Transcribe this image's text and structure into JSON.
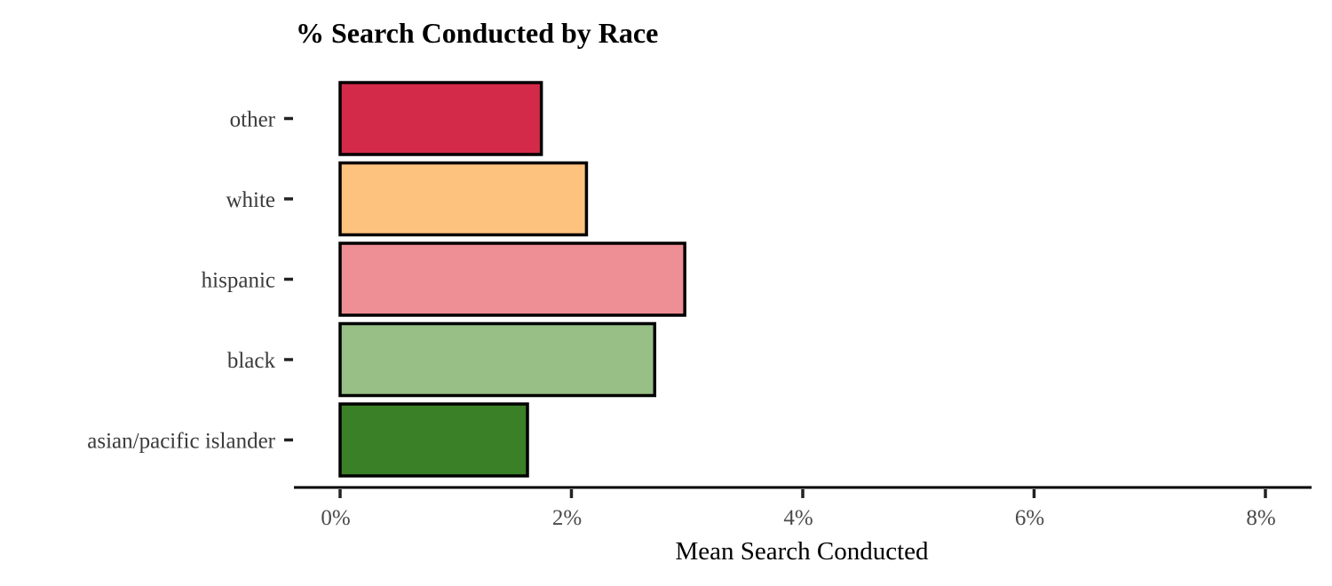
{
  "chart_data": {
    "type": "bar",
    "orientation": "horizontal",
    "title": "% Search Conducted by Race",
    "xlabel": "Mean Search Conducted",
    "ylabel": "",
    "categories": [
      "other",
      "white",
      "hispanic",
      "black",
      "asian/pacific islander"
    ],
    "values": [
      1.74,
      2.13,
      2.98,
      2.72,
      1.62
    ],
    "colors": [
      "#D42A4A",
      "#FEC27F",
      "#EE8F95",
      "#98BF86",
      "#3A8026"
    ],
    "xlim": [
      0,
      8
    ],
    "xticks": [
      0,
      2,
      4,
      6,
      8
    ],
    "xtick_labels": [
      "0%",
      "2%",
      "4%",
      "6%",
      "8%"
    ],
    "grid": false,
    "legend": "none"
  }
}
